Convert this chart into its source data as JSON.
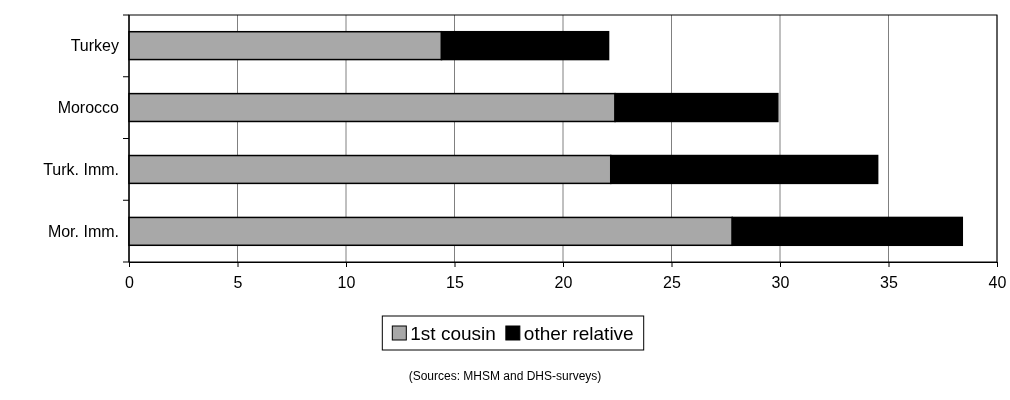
{
  "chart_data": {
    "type": "bar",
    "orientation": "horizontal",
    "stacked": true,
    "categories": [
      "Turkey",
      "Morocco",
      "Turk. Imm.",
      "Mor. Imm."
    ],
    "series": [
      {
        "name": "1st cousin",
        "color": "#a8a8a8",
        "values": [
          14.4,
          22.4,
          22.2,
          27.8
        ]
      },
      {
        "name": "other relative",
        "color": "#000000",
        "values": [
          7.7,
          7.5,
          12.3,
          10.6
        ]
      }
    ],
    "xlim": [
      0,
      40
    ],
    "xticks": [
      0,
      5,
      10,
      15,
      20,
      25,
      30,
      35,
      40
    ],
    "grid": "x",
    "legend": "bottom",
    "annotations": [
      "(Sources: MHSM and DHS-surveys)"
    ]
  }
}
